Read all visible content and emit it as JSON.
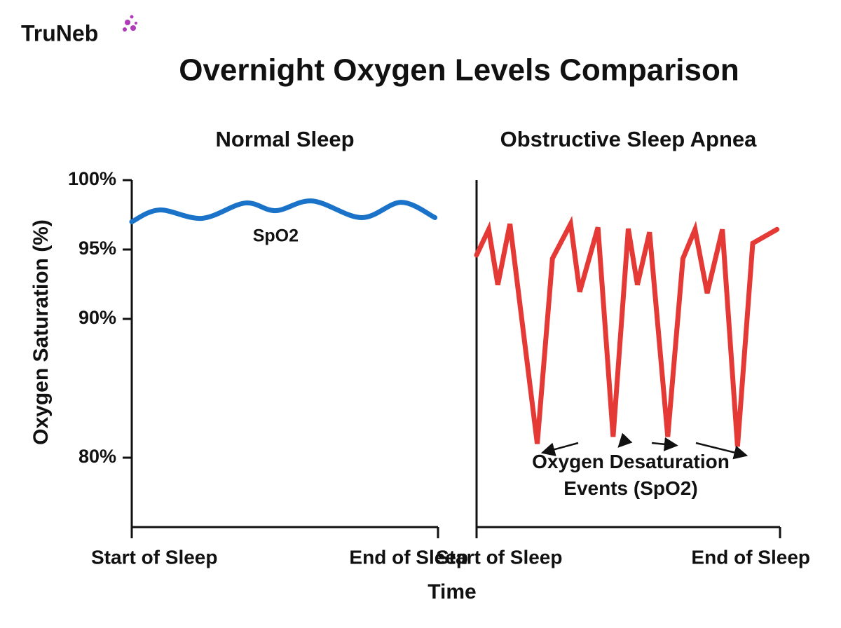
{
  "logo": "TruNeb",
  "title": "Overnight Oxygen Levels Comparison",
  "y_label": "Oxygen Saturation (%)",
  "x_label": "Time",
  "chart_data": [
    {
      "type": "line",
      "title": "Normal Sleep",
      "x": [
        0,
        9,
        23,
        37,
        47,
        59,
        75,
        88,
        99
      ],
      "series": [
        {
          "name": "SpO2",
          "color": "#1a73c8",
          "values": [
            97.0,
            97.85,
            97.25,
            98.35,
            97.8,
            98.5,
            97.3,
            98.4,
            97.3
          ]
        }
      ],
      "xlim": [
        0,
        100
      ],
      "xticks": [
        {
          "value": 0,
          "label": "Start of Sleep"
        },
        {
          "value": 100,
          "label": "End of Sleep"
        }
      ],
      "ylim": [
        75,
        100
      ],
      "yticks": [
        {
          "value": 100,
          "label": "100%"
        },
        {
          "value": 95,
          "label": "95%"
        },
        {
          "value": 90,
          "label": "90%"
        },
        {
          "value": 80,
          "label": "80%"
        }
      ]
    },
    {
      "type": "line",
      "title": "Obstructive Sleep Apnea",
      "x": [
        0,
        4,
        7,
        11,
        20,
        25,
        31,
        34,
        40,
        45,
        50,
        53,
        57,
        63,
        68,
        72,
        76,
        81,
        86,
        91,
        99
      ],
      "series": [
        {
          "color": "#e53935",
          "values": [
            94.6,
            96.45,
            92.45,
            96.85,
            81,
            94.35,
            96.85,
            91.95,
            96.6,
            81.5,
            96.5,
            92.45,
            96.25,
            81.5,
            94.35,
            96.45,
            91.85,
            96.45,
            80.8,
            95.45,
            96.45
          ]
        }
      ],
      "xlim": [
        0,
        100
      ],
      "xticks": [
        {
          "value": 0,
          "label": "Start of Sleep"
        },
        {
          "value": 100,
          "label": "End of Sleep"
        }
      ],
      "ylim": [
        75,
        100
      ],
      "annotation": "Oxygen Desaturation Events (SpO2)"
    }
  ]
}
